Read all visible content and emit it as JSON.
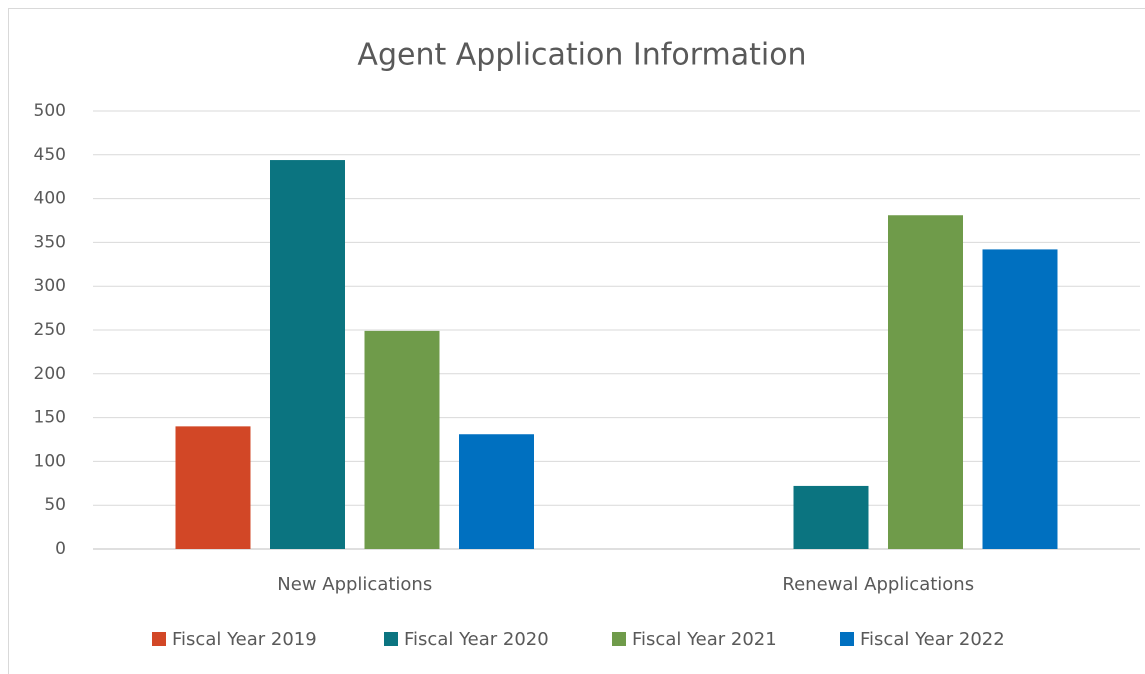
{
  "chart_data": {
    "type": "bar",
    "title": "Agent Application Information",
    "categories": [
      "New Applications",
      "Renewal Applications"
    ],
    "series": [
      {
        "name": "Fiscal Year 2019",
        "color": "#d24726",
        "values": [
          140,
          0
        ]
      },
      {
        "name": "Fiscal Year 2020",
        "color": "#0b7480",
        "values": [
          444,
          72
        ]
      },
      {
        "name": "Fiscal Year 2021",
        "color": "#6f9b4a",
        "values": [
          249,
          381
        ]
      },
      {
        "name": "Fiscal Year 2022",
        "color": "#0070c0",
        "values": [
          131,
          342
        ]
      }
    ],
    "ylim": [
      0,
      500
    ],
    "yticks": [
      0,
      50,
      100,
      150,
      200,
      250,
      300,
      350,
      400,
      450,
      500
    ],
    "grid": true,
    "legend": "bottom"
  }
}
